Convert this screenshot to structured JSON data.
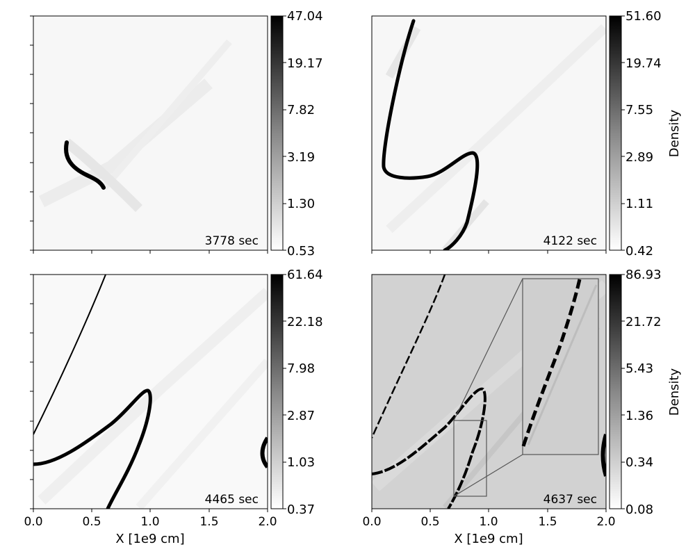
{
  "figure": {
    "x_axis_label": "X [1e9 cm]",
    "colorbar_label": "Density"
  },
  "chart_data": [
    {
      "type": "heatmap",
      "time_label": "3778 sec",
      "colormap": "Greys",
      "colorbar_ticks": [
        "47.04",
        "19.17",
        "7.82",
        "3.19",
        "1.30",
        "0.53"
      ],
      "colorbar_scale": "log",
      "colorbar_label": "",
      "xlabel": "",
      "xlim": [
        0,
        2.0
      ],
      "x_ticks": [],
      "background": "#f7f7f7"
    },
    {
      "type": "heatmap",
      "time_label": "4122 sec",
      "colormap": "Greys",
      "colorbar_ticks": [
        "51.60",
        "19.74",
        "7.55",
        "2.89",
        "1.11",
        "0.42"
      ],
      "colorbar_scale": "log",
      "colorbar_label": "Density",
      "xlabel": "",
      "xlim": [
        0,
        2.0
      ],
      "x_ticks": [],
      "background": "#f7f7f7"
    },
    {
      "type": "heatmap",
      "time_label": "4465 sec",
      "colormap": "Greys",
      "colorbar_ticks": [
        "61.64",
        "22.18",
        "7.98",
        "2.87",
        "1.03",
        "0.37"
      ],
      "colorbar_scale": "log",
      "colorbar_label": "",
      "xlabel": "X [1e9 cm]",
      "xlim": [
        0,
        2.0
      ],
      "x_ticks": [
        "0.0",
        "0.5",
        "1.0",
        "1.5",
        "2.0"
      ],
      "background": "#f9f9f9"
    },
    {
      "type": "heatmap",
      "time_label": "4637 sec",
      "colormap": "Greys",
      "colorbar_ticks": [
        "86.93",
        "21.72",
        "5.43",
        "1.36",
        "0.34",
        "0.08"
      ],
      "colorbar_scale": "log",
      "colorbar_label": "Density",
      "xlabel": "X [1e9 cm]",
      "xlim": [
        0,
        2.0
      ],
      "x_ticks": [
        "0.0",
        "0.5",
        "1.0",
        "1.5",
        "2.0"
      ],
      "background": "#d2d2d2",
      "inset_zoom": true
    }
  ]
}
